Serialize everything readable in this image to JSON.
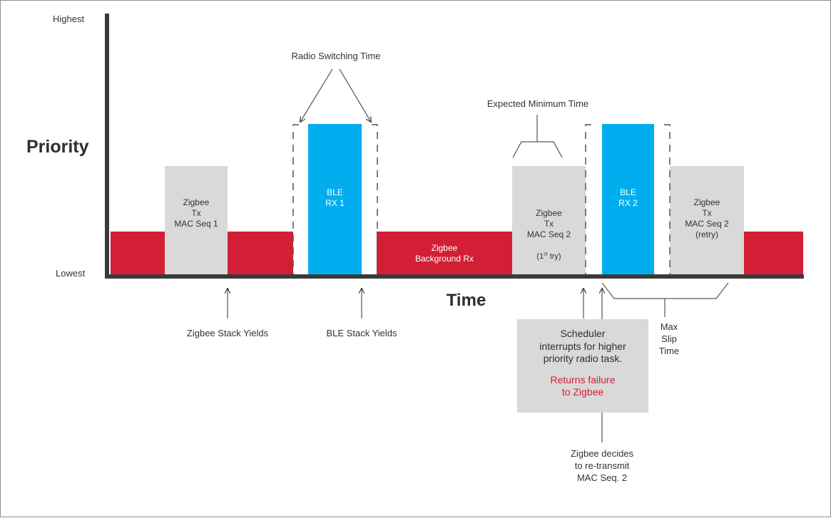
{
  "y_axis": {
    "highest": "Highest",
    "lowest": "Lowest",
    "title": "Priority"
  },
  "x_axis": {
    "title": "Time"
  },
  "blocks": {
    "zigbee_tx_1": "Zigbee\nTx\nMAC Seq 1",
    "ble_rx_1": "BLE\nRX 1",
    "zigbee_background": "Zigbee\nBackground Rx",
    "zigbee_tx_2_first": "Zigbee\nTx\nMAC Seq 2",
    "zigbee_tx_2_first_note_pre": "(1",
    "zigbee_tx_2_first_note_sup": "st",
    "zigbee_tx_2_first_note_post": " try)",
    "ble_rx_2": "BLE\nRX 2",
    "zigbee_tx_2_retry": "Zigbee\nTx\nMAC Seq 2\n(retry)"
  },
  "annotations": {
    "radio_switching_time": "Radio Switching Time",
    "expected_minimum_time": "Expected Minimum Time",
    "zigbee_stack_yields": "Zigbee Stack Yields",
    "ble_stack_yields": "BLE Stack Yields",
    "max_slip_time": "Max\nSlip\nTime",
    "zigbee_decides": "Zigbee decides\nto re-transmit\nMAC Seq. 2"
  },
  "scheduler_box": {
    "text": "Scheduler\ninterrupts for higher\npriority radio task.",
    "highlight": "Returns failure\nto Zigbee"
  },
  "colors": {
    "zigbee_red": "#d21f35",
    "ble_blue": "#00aeef",
    "zigbee_gray": "#d9d9d9",
    "axis": "#3a3a3a"
  }
}
